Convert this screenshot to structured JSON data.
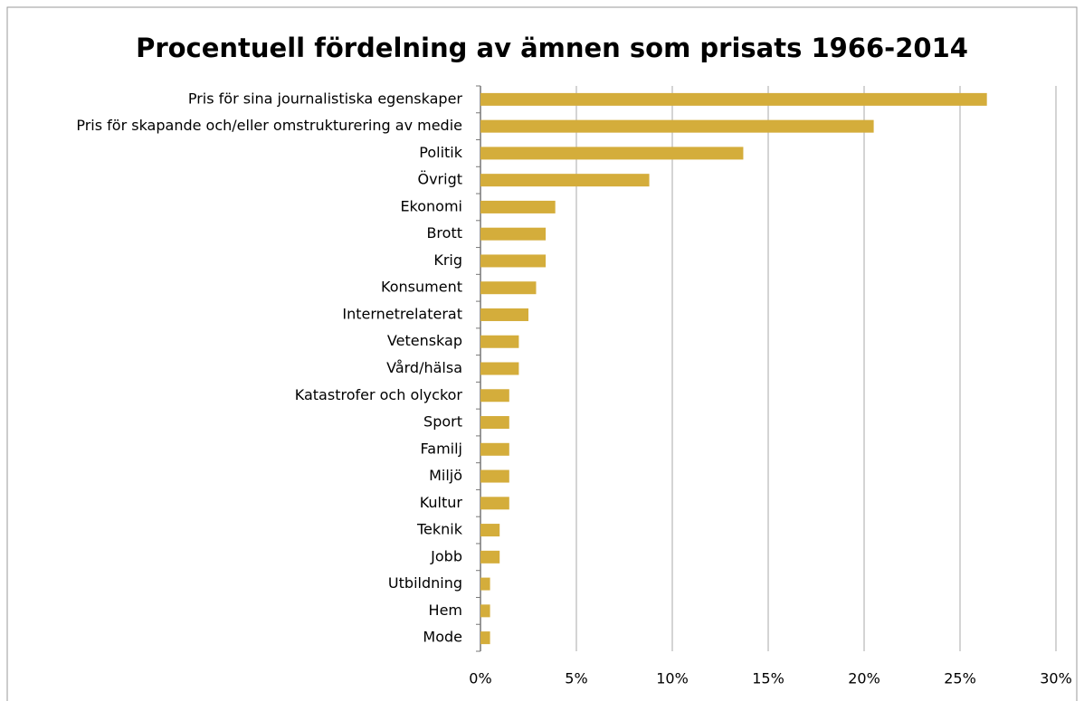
{
  "chart_data": {
    "type": "bar",
    "orientation": "horizontal",
    "title": "Procentuell fördelning av ämnen som prisats 1966-2014",
    "categories": [
      "Pris för sina journalistiska egenskaper",
      "Pris för skapande och/eller omstrukturering av medie",
      "Politik",
      "Övrigt",
      "Ekonomi",
      "Brott",
      "Krig",
      "Konsument",
      "Internetrelaterat",
      "Vetenskap",
      "Vård/hälsa",
      "Katastrofer och olyckor",
      "Sport",
      "Familj",
      "Miljö",
      "Kultur",
      "Teknik",
      "Jobb",
      "Utbildning",
      "Hem",
      "Mode"
    ],
    "values": [
      26.4,
      20.5,
      13.7,
      8.8,
      3.9,
      3.4,
      3.4,
      2.9,
      2.5,
      2.0,
      2.0,
      1.5,
      1.5,
      1.5,
      1.5,
      1.5,
      1.0,
      1.0,
      0.5,
      0.5,
      0.5
    ],
    "color": "#d4ad3b",
    "xlim": [
      0,
      30
    ],
    "xticks": [
      {
        "value": 0,
        "label": "0%"
      },
      {
        "value": 5,
        "label": "5%"
      },
      {
        "value": 10,
        "label": "10%"
      },
      {
        "value": 15,
        "label": "15%"
      },
      {
        "value": 20,
        "label": "20%"
      },
      {
        "value": 25,
        "label": "25%"
      },
      {
        "value": 30,
        "label": "30%"
      }
    ],
    "grid": true
  }
}
